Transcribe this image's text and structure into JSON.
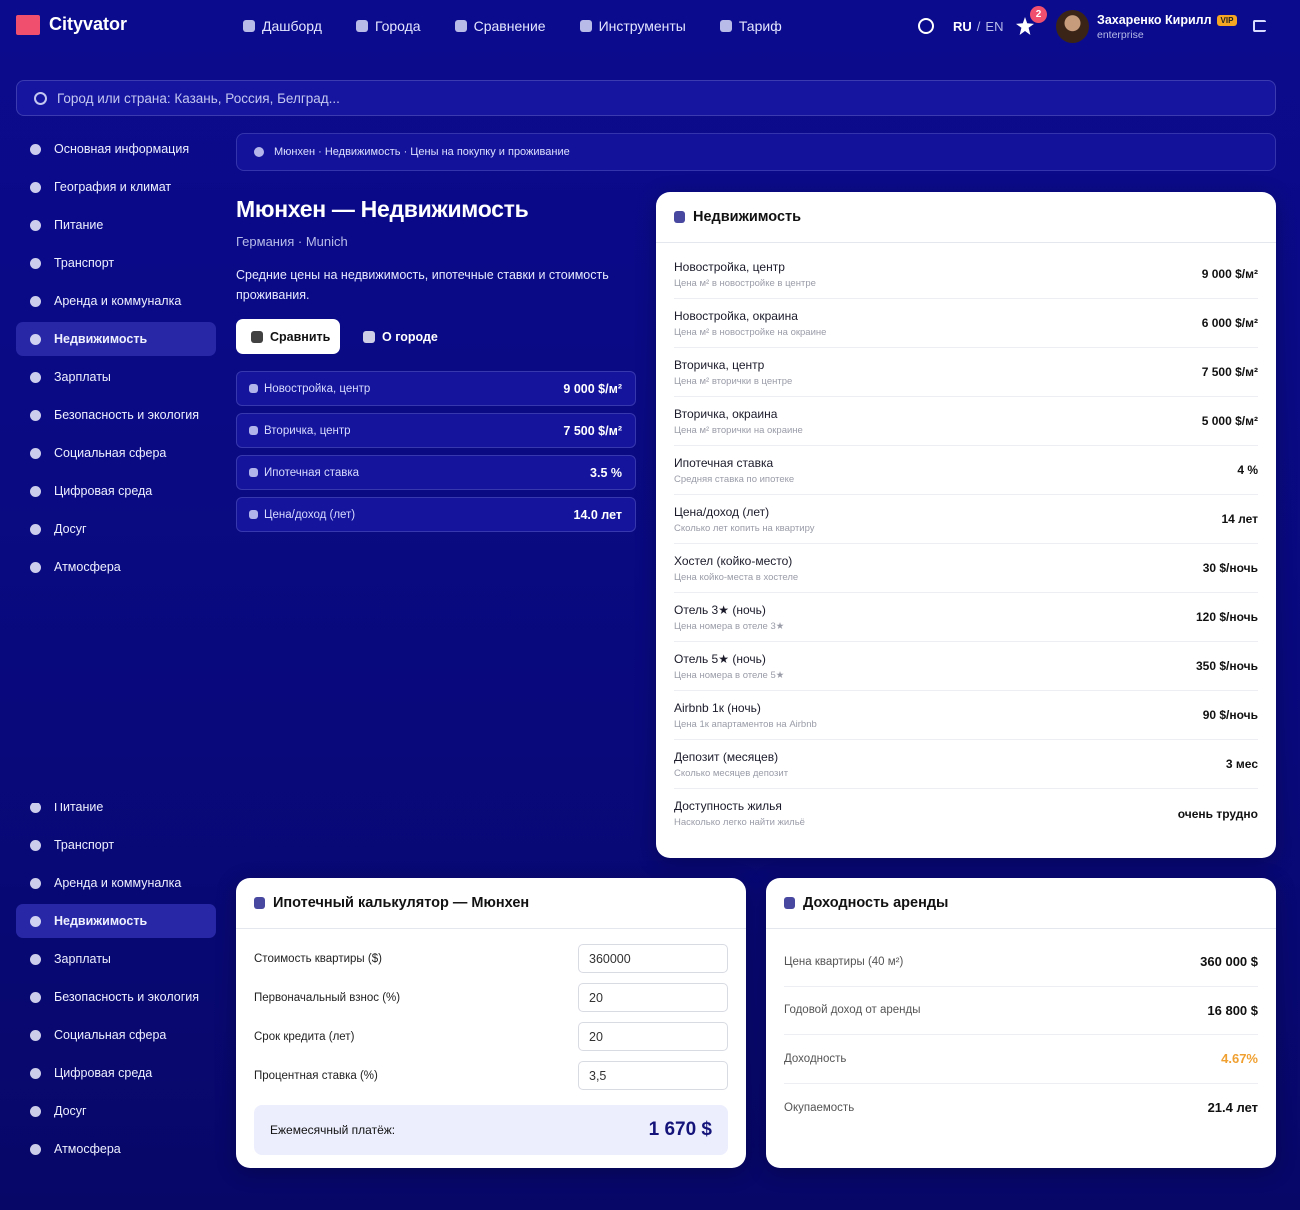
{
  "header": {
    "logo": "Cityvator",
    "nav": [
      "Дашборд",
      "Города",
      "Сравнение",
      "Инструменты",
      "Тариф"
    ],
    "lang_ru": "RU",
    "lang_sep": "/",
    "lang_en": "EN",
    "notifications": "2",
    "user_name": "Захаренко Кирилл",
    "badge": "VIP",
    "plan": "enterprise"
  },
  "search": {
    "placeholder": "Город или страна: Казань, Россия, Белград..."
  },
  "sidebar": {
    "items": [
      "Основная информация",
      "География и климат",
      "Питание",
      "Транспорт",
      "Аренда и коммуналка",
      "Недвижимость",
      "Зарплаты",
      "Безопасность и экология",
      "Социальная сфера",
      "Цифровая среда",
      "Досуг",
      "Атмосфера"
    ],
    "active": "Недвижимость"
  },
  "breadcrumb": "Мюнхен · Недвижимость · Цены на покупку и проживание",
  "page": {
    "title": "Мюнхен — Недвижимость",
    "subtitle": "Германия · Munich",
    "description": "Средние цены на недвижимость, ипотечные ставки и стоимость проживания.",
    "buttons": [
      "Сравнить",
      "О городе"
    ]
  },
  "stats": [
    {
      "label": "Новостройка, центр",
      "value": "9 000 $/м²"
    },
    {
      "label": "Вторичка, центр",
      "value": "7 500 $/м²"
    },
    {
      "label": "Ипотечная ставка",
      "value": "3.5 %"
    },
    {
      "label": "Цена/доход (лет)",
      "value": "14.0 лет"
    }
  ],
  "realty": {
    "title": "Недвижимость",
    "rows": [
      {
        "name": "Новостройка, центр",
        "desc": "Цена м² в новостройке в центре",
        "value": "9 000 $/м²"
      },
      {
        "name": "Новостройка, окраина",
        "desc": "Цена м² в новостройке на окраине",
        "value": "6 000 $/м²"
      },
      {
        "name": "Вторичка, центр",
        "desc": "Цена м² вторички в центре",
        "value": "7 500 $/м²"
      },
      {
        "name": "Вторичка, окраина",
        "desc": "Цена м² вторички на окраине",
        "value": "5 000 $/м²"
      },
      {
        "name": "Ипотечная ставка",
        "desc": "Средняя ставка по ипотеке",
        "value": "4 %"
      },
      {
        "name": "Цена/доход (лет)",
        "desc": "Сколько лет копить на квартиру",
        "value": "14 лет"
      },
      {
        "name": "Хостел (койко-место)",
        "desc": "Цена койко-места в хостеле",
        "value": "30 $/ночь"
      },
      {
        "name": "Отель 3★ (ночь)",
        "desc": "Цена номера в отеле 3★",
        "value": "120 $/ночь"
      },
      {
        "name": "Отель 5★ (ночь)",
        "desc": "Цена номера в отеле 5★",
        "value": "350 $/ночь"
      },
      {
        "name": "Airbnb 1к (ночь)",
        "desc": "Цена 1к апартаментов на Airbnb",
        "value": "90 $/ночь"
      },
      {
        "name": "Депозит (месяцев)",
        "desc": "Сколько месяцев депозит",
        "value": "3 мес"
      },
      {
        "name": "Доступность жилья",
        "desc": "Насколько легко найти жильё",
        "value": "очень трудно"
      }
    ]
  },
  "calculator": {
    "title": "Ипотечный калькулятор — Мюнхен",
    "fields": [
      {
        "label": "Стоимость квартиры ($)",
        "value": "360000"
      },
      {
        "label": "Первоначальный взнос (%)",
        "value": "20"
      },
      {
        "label": "Срок кредита (лет)",
        "value": "20"
      },
      {
        "label": "Процентная ставка (%)",
        "value": "3,5"
      }
    ],
    "result_label": "Ежемесячный платёж:",
    "result_value": "1 670 $"
  },
  "yield": {
    "title": "Доходность аренды",
    "rows": [
      {
        "label": "Цена квартиры (40 м²)",
        "value": "360 000 $"
      },
      {
        "label": "Годовой доход от аренды",
        "value": "16 800 $"
      },
      {
        "label": "Доходность",
        "value": "4.67%",
        "highlight": true
      },
      {
        "label": "Окупаемость",
        "value": "21.4 лет"
      }
    ]
  }
}
